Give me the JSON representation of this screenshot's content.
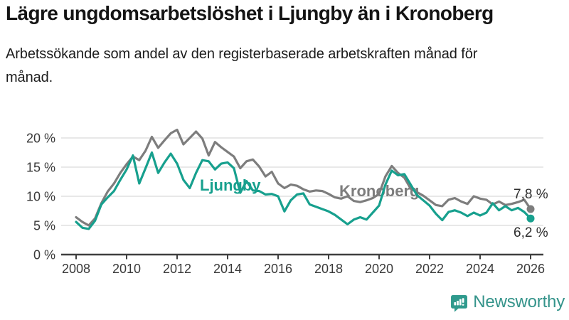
{
  "header": {
    "title": "Lägre ungdomsarbetslöshet i Ljungby än i Kronoberg",
    "subtitle": "Arbetssökande som andel av den registerbaserade arbetskraften månad för månad."
  },
  "chart_data": {
    "type": "line",
    "title": "Lägre ungdomsarbetslöshet i Ljungby än i Kronoberg",
    "subtitle": "Arbetssökande som andel av den registerbaserade arbetskraften månad för månad.",
    "x_start": 2008.0,
    "x_step": 0.25,
    "x_end": 2026.0,
    "xlim": [
      2007.4,
      2026.5
    ],
    "ylim": [
      0,
      22.5
    ],
    "grid": "horizontal",
    "legend_position": "inline-labels",
    "y_ticks": [
      0,
      5,
      10,
      15,
      20
    ],
    "y_tick_labels": [
      "0 %",
      "5 %",
      "10 %",
      "15 %",
      "20 %"
    ],
    "x_ticks": [
      2008,
      2010,
      2012,
      2014,
      2016,
      2018,
      2020,
      2022,
      2024,
      2026
    ],
    "x_tick_labels": [
      "2008",
      "2010",
      "2012",
      "2014",
      "2016",
      "2018",
      "2020",
      "2022",
      "2024",
      "2026"
    ],
    "series": [
      {
        "name": "Kronoberg",
        "color": "#7d7d7d",
        "end_label": "7,8 %",
        "end_value": 7.8,
        "values": [
          6.4,
          5.6,
          5.0,
          6.2,
          8.8,
          10.8,
          12.2,
          14.0,
          15.5,
          16.8,
          16.2,
          17.8,
          20.2,
          18.3,
          19.6,
          20.8,
          21.4,
          18.9,
          20.0,
          21.1,
          19.9,
          17.0,
          19.3,
          18.4,
          17.6,
          16.8,
          14.8,
          16.0,
          16.3,
          15.1,
          13.4,
          14.2,
          12.2,
          11.4,
          12.0,
          11.8,
          11.2,
          10.8,
          11.0,
          10.9,
          10.4,
          9.8,
          9.6,
          10.0,
          9.2,
          9.0,
          9.3,
          9.7,
          10.4,
          13.4,
          15.2,
          14.0,
          13.2,
          11.3,
          10.7,
          10.1,
          9.3,
          8.5,
          8.3,
          9.4,
          9.7,
          9.1,
          8.7,
          10.0,
          9.6,
          9.4,
          8.6,
          9.1,
          8.5,
          8.7,
          9.0,
          9.4,
          7.8
        ]
      },
      {
        "name": "Ljungby",
        "color": "#17a08e",
        "end_label": "6,2 %",
        "end_value": 6.2,
        "values": [
          5.6,
          4.6,
          4.4,
          5.8,
          8.6,
          9.8,
          10.9,
          12.8,
          14.6,
          17.0,
          12.2,
          14.8,
          17.5,
          14.0,
          15.8,
          17.3,
          15.6,
          12.8,
          11.4,
          14.0,
          16.2,
          16.0,
          14.6,
          15.6,
          15.8,
          14.8,
          10.6,
          12.6,
          11.0,
          10.9,
          10.3,
          10.4,
          10.0,
          7.4,
          9.3,
          10.3,
          10.5,
          8.6,
          8.2,
          7.8,
          7.4,
          6.8,
          6.0,
          5.2,
          6.0,
          6.4,
          6.0,
          7.2,
          8.4,
          12.0,
          14.4,
          13.6,
          13.8,
          12.0,
          10.2,
          9.3,
          8.4,
          7.0,
          5.9,
          7.3,
          7.6,
          7.2,
          6.6,
          7.2,
          6.7,
          7.2,
          8.8,
          7.6,
          8.3,
          7.6,
          8.0,
          7.3,
          6.2
        ]
      }
    ]
  },
  "branding": {
    "wordmark": "Newsworthy",
    "logo_icon": "bar-chart-speech-bubble-icon",
    "color": "#35948b",
    "icon_color": "#2f9a8d"
  }
}
